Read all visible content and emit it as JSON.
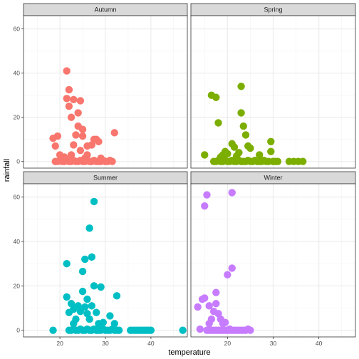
{
  "chart_data": {
    "type": "scatter",
    "xlabel": "temperature",
    "ylabel": "rainfall",
    "xlim": [
      12,
      48
    ],
    "ylim": [
      -3,
      66
    ],
    "x_ticks": [
      20,
      30,
      40
    ],
    "y_ticks": [
      0,
      20,
      40,
      60
    ],
    "grid": true,
    "legend": "none",
    "panels": [
      {
        "name": "Autumn",
        "color": "#F8766D",
        "points": [
          [
            18.5,
            10.5
          ],
          [
            19,
            7
          ],
          [
            19.5,
            11.5
          ],
          [
            20,
            3
          ],
          [
            20.5,
            1.5
          ],
          [
            21,
            2
          ],
          [
            21.5,
            41
          ],
          [
            21.5,
            28.5
          ],
          [
            22,
            32.5
          ],
          [
            22,
            25
          ],
          [
            22.5,
            20
          ],
          [
            22.5,
            3
          ],
          [
            23,
            28
          ],
          [
            23,
            7.5
          ],
          [
            23.5,
            12
          ],
          [
            24,
            22
          ],
          [
            24,
            16
          ],
          [
            24.5,
            27.5
          ],
          [
            24.5,
            5
          ],
          [
            25,
            14.5
          ],
          [
            25,
            11.5
          ],
          [
            25.5,
            1.5
          ],
          [
            26,
            3
          ],
          [
            26,
            7
          ],
          [
            27,
            7.5
          ],
          [
            27.5,
            10
          ],
          [
            28,
            10
          ],
          [
            28.5,
            9
          ],
          [
            29,
            1.5
          ],
          [
            32,
            13
          ],
          [
            19,
            0
          ],
          [
            19.5,
            0
          ],
          [
            20,
            0.5
          ],
          [
            20.5,
            0
          ],
          [
            21,
            0
          ],
          [
            21.5,
            0.5
          ],
          [
            22,
            0
          ],
          [
            22.5,
            0
          ],
          [
            23,
            0.5
          ],
          [
            23.5,
            0
          ],
          [
            24,
            0
          ],
          [
            24.5,
            0.5
          ],
          [
            25,
            0
          ],
          [
            25.5,
            0
          ],
          [
            26,
            0.5
          ],
          [
            26.5,
            0
          ],
          [
            27,
            0
          ],
          [
            27.5,
            0.5
          ],
          [
            28,
            0
          ],
          [
            28.5,
            0
          ],
          [
            29,
            0
          ],
          [
            29.5,
            0.5
          ],
          [
            30,
            0
          ],
          [
            30.5,
            0
          ],
          [
            31,
            0.5
          ],
          [
            31.5,
            0
          ]
        ]
      },
      {
        "name": "Spring",
        "color": "#7CAE00",
        "points": [
          [
            15,
            3
          ],
          [
            16.5,
            30
          ],
          [
            17.5,
            29
          ],
          [
            18,
            17.5
          ],
          [
            18.5,
            2
          ],
          [
            19,
            3
          ],
          [
            19.5,
            4.5
          ],
          [
            20,
            3.5
          ],
          [
            21,
            8
          ],
          [
            21.5,
            6.5
          ],
          [
            22,
            2.5
          ],
          [
            22.5,
            4
          ],
          [
            23,
            34
          ],
          [
            23,
            22
          ],
          [
            23.5,
            16
          ],
          [
            24,
            12
          ],
          [
            24.5,
            7
          ],
          [
            25,
            6
          ],
          [
            27,
            3
          ],
          [
            29.5,
            9
          ],
          [
            29.5,
            4.5
          ],
          [
            17,
            0
          ],
          [
            17.5,
            0
          ],
          [
            18,
            0.5
          ],
          [
            18.5,
            0
          ],
          [
            19,
            0
          ],
          [
            19.5,
            0.5
          ],
          [
            20,
            0
          ],
          [
            20.5,
            0
          ],
          [
            21,
            0.5
          ],
          [
            21.5,
            0
          ],
          [
            22,
            0
          ],
          [
            22.5,
            0.5
          ],
          [
            23,
            0
          ],
          [
            23.5,
            0
          ],
          [
            24,
            0
          ],
          [
            24.5,
            0.5
          ],
          [
            25,
            0
          ],
          [
            25.5,
            0
          ],
          [
            26,
            0.5
          ],
          [
            26.5,
            0
          ],
          [
            27,
            0
          ],
          [
            27.5,
            0
          ],
          [
            28,
            0.5
          ],
          [
            28.5,
            0
          ],
          [
            29,
            0
          ],
          [
            30,
            0
          ],
          [
            30.5,
            0
          ],
          [
            31,
            0
          ],
          [
            33.5,
            0
          ],
          [
            34.5,
            0
          ],
          [
            35.5,
            0
          ],
          [
            36.5,
            0
          ]
        ]
      },
      {
        "name": "Summer",
        "color": "#00BFC4",
        "points": [
          [
            18.5,
            0
          ],
          [
            21.5,
            30
          ],
          [
            21.5,
            15
          ],
          [
            22,
            8
          ],
          [
            22.5,
            12
          ],
          [
            23,
            9.5
          ],
          [
            23,
            3
          ],
          [
            23.5,
            5
          ],
          [
            24,
            11
          ],
          [
            24.5,
            8.5
          ],
          [
            25,
            17.5
          ],
          [
            25,
            26.5
          ],
          [
            25.5,
            10.5
          ],
          [
            25.5,
            32
          ],
          [
            26,
            7.5
          ],
          [
            26,
            14
          ],
          [
            26.5,
            46
          ],
          [
            26.5,
            5
          ],
          [
            27,
            33
          ],
          [
            27,
            11
          ],
          [
            27.5,
            58
          ],
          [
            27.5,
            20
          ],
          [
            28,
            8
          ],
          [
            28.5,
            3
          ],
          [
            29,
            19.5
          ],
          [
            29.5,
            3.5
          ],
          [
            31,
            6.5
          ],
          [
            32,
            3
          ],
          [
            32.5,
            15.5
          ],
          [
            47,
            0
          ],
          [
            22,
            0
          ],
          [
            22.5,
            0
          ],
          [
            23,
            0.5
          ],
          [
            23.5,
            0
          ],
          [
            24,
            0
          ],
          [
            24.5,
            0.5
          ],
          [
            25,
            0
          ],
          [
            25.5,
            0
          ],
          [
            26,
            0.5
          ],
          [
            26.5,
            0
          ],
          [
            27,
            0
          ],
          [
            27.5,
            0.5
          ],
          [
            28,
            0
          ],
          [
            28.5,
            0
          ],
          [
            29,
            0
          ],
          [
            29.5,
            0.5
          ],
          [
            30,
            0
          ],
          [
            30.5,
            0
          ],
          [
            31,
            0
          ],
          [
            31.5,
            0.5
          ],
          [
            32,
            0
          ],
          [
            32.5,
            0
          ],
          [
            33,
            0
          ],
          [
            35.5,
            0
          ],
          [
            36,
            0
          ],
          [
            36.5,
            0
          ],
          [
            37,
            0
          ],
          [
            37.5,
            0
          ],
          [
            38,
            0
          ],
          [
            38.5,
            0
          ],
          [
            39,
            0
          ],
          [
            39.5,
            0
          ],
          [
            40,
            0
          ]
        ]
      },
      {
        "name": "Winter",
        "color": "#C77CFF",
        "points": [
          [
            13.5,
            10.5
          ],
          [
            14,
            0.5
          ],
          [
            14.5,
            14
          ],
          [
            15,
            14.5
          ],
          [
            15,
            56
          ],
          [
            15.5,
            61
          ],
          [
            16,
            3
          ],
          [
            16,
            11
          ],
          [
            16.5,
            5
          ],
          [
            17,
            8.5
          ],
          [
            17.5,
            12
          ],
          [
            17.5,
            17
          ],
          [
            18,
            7.5
          ],
          [
            18.5,
            5
          ],
          [
            19,
            3
          ],
          [
            19.5,
            3.5
          ],
          [
            20,
            25
          ],
          [
            20.5,
            0.5
          ],
          [
            21,
            28
          ],
          [
            21,
            62
          ],
          [
            24.5,
            0.5
          ],
          [
            15.5,
            0
          ],
          [
            16,
            0
          ],
          [
            16.5,
            0
          ],
          [
            17,
            0
          ],
          [
            17.5,
            0
          ],
          [
            18,
            0
          ],
          [
            18.5,
            0
          ],
          [
            19,
            0
          ],
          [
            19.5,
            0
          ],
          [
            20,
            0
          ],
          [
            20.5,
            0
          ],
          [
            21,
            0
          ],
          [
            21.5,
            0
          ],
          [
            22,
            0
          ],
          [
            22.5,
            0
          ],
          [
            23,
            0
          ],
          [
            23.5,
            0
          ],
          [
            24,
            0
          ],
          [
            25,
            0
          ]
        ]
      }
    ]
  }
}
